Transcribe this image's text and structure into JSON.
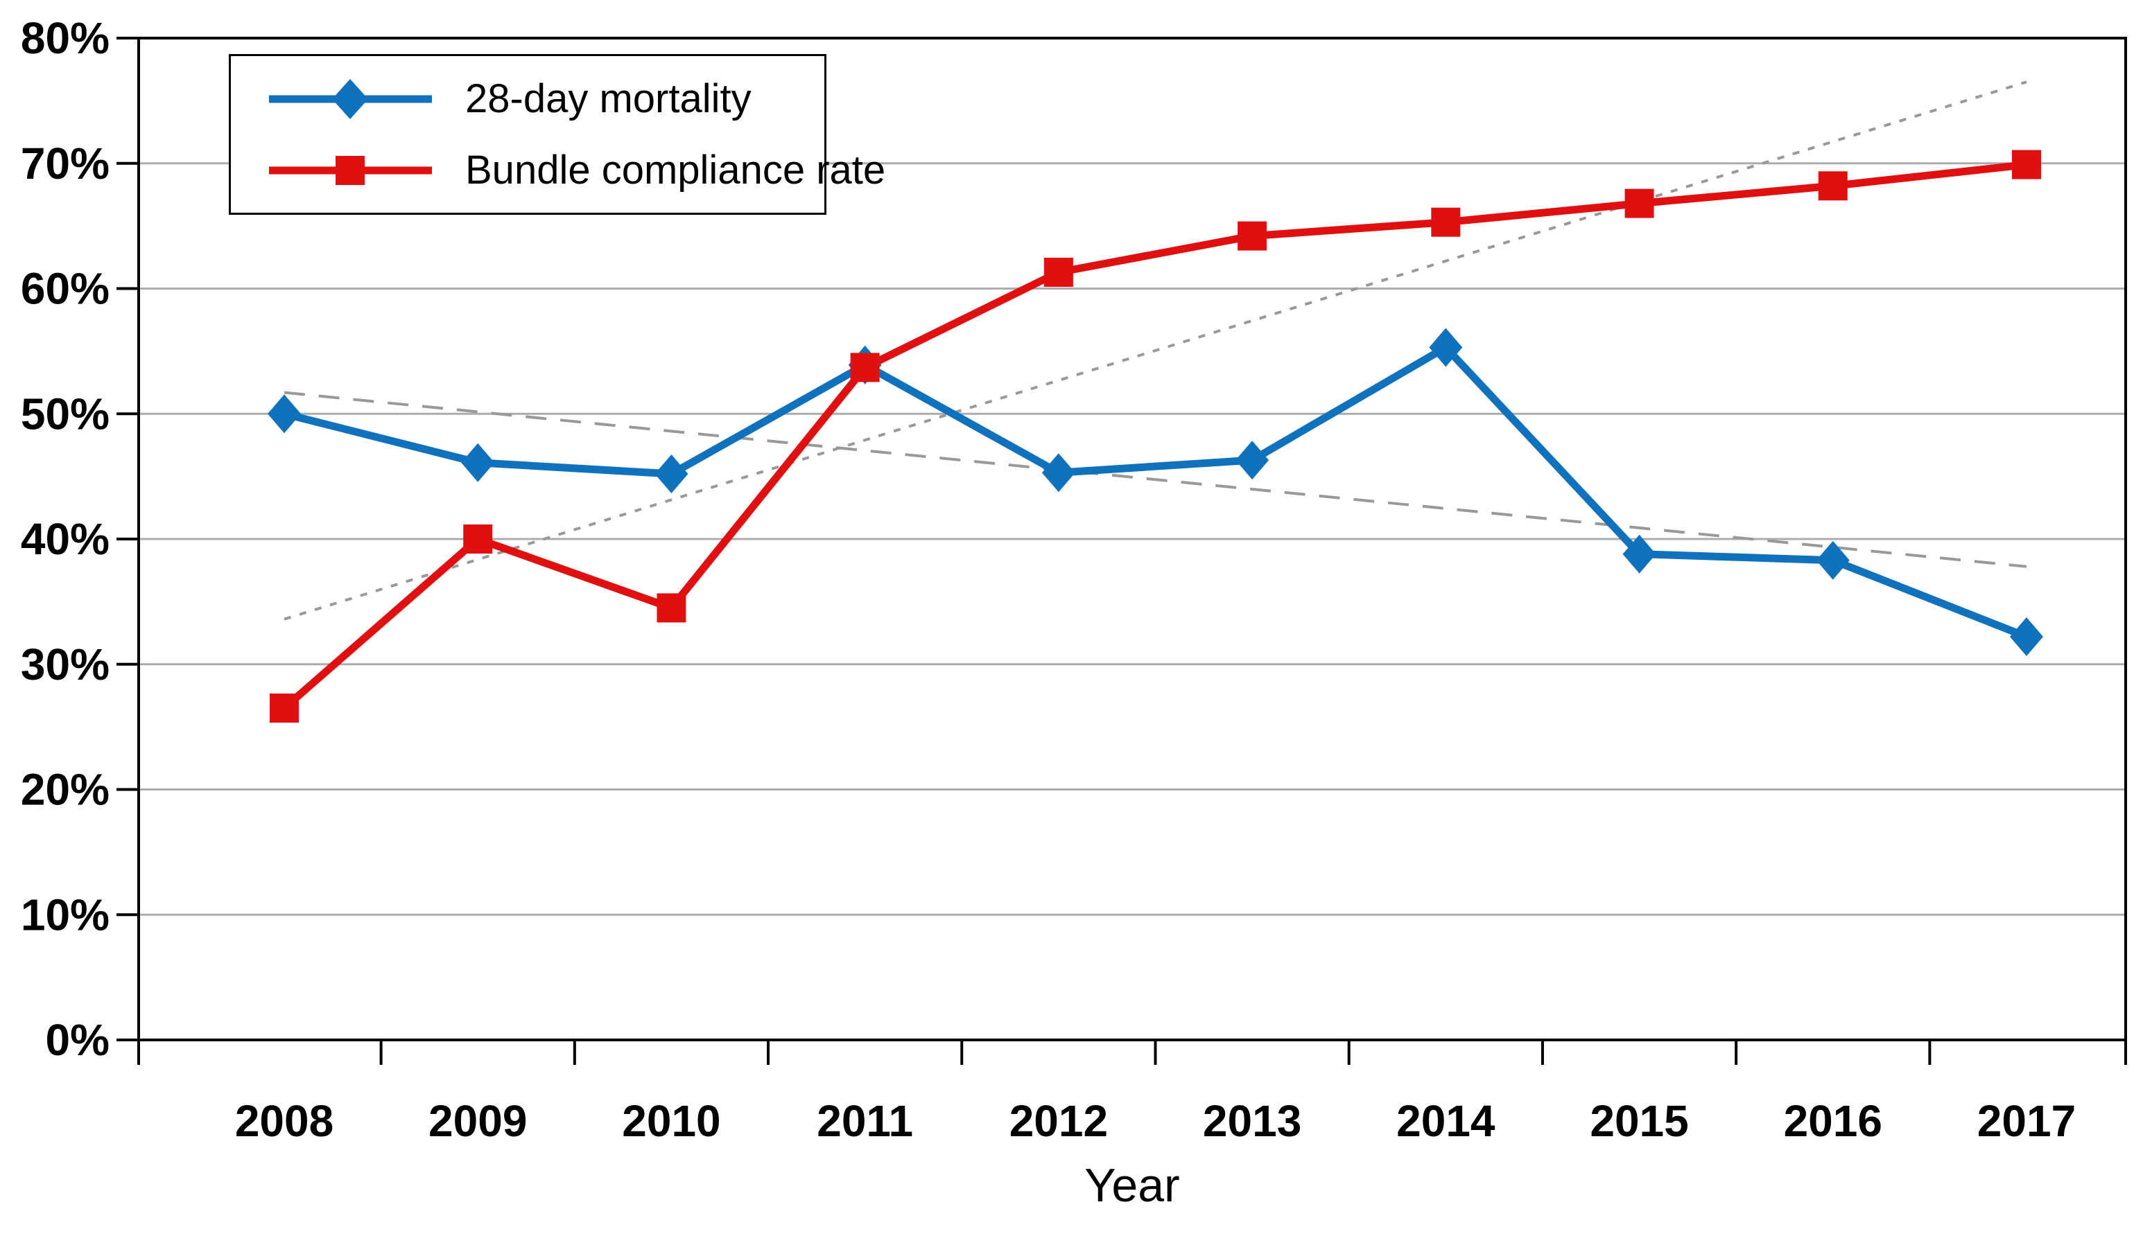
{
  "chart_data": {
    "type": "line",
    "title": "",
    "xlabel": "Year",
    "ylabel": "",
    "categories": [
      "2008",
      "2009",
      "2010",
      "2011",
      "2012",
      "2013",
      "2014",
      "2015",
      "2016",
      "2017"
    ],
    "series": [
      {
        "name": "28-day mortality",
        "color": "#1072BC",
        "marker": "diamond",
        "values": [
          50.0,
          46.1,
          45.2,
          53.9,
          45.3,
          46.3,
          55.3,
          38.8,
          38.3,
          32.2
        ]
      },
      {
        "name": "Bundle compliance rate",
        "color": "#E01010",
        "marker": "square",
        "values": [
          26.5,
          40.0,
          34.5,
          53.7,
          61.3,
          64.2,
          65.3,
          66.8,
          68.2,
          69.9
        ]
      }
    ],
    "trendlines": [
      {
        "for_series": "28-day mortality",
        "style": "long-dash",
        "color": "#999999",
        "start_value": 51.7,
        "end_value": 37.8
      },
      {
        "for_series": "Bundle compliance rate",
        "style": "short-dash",
        "color": "#999999",
        "start_value": 33.6,
        "end_value": 76.5
      }
    ],
    "ylim": [
      0,
      80
    ],
    "ytick_step": 10,
    "ytick_labels": [
      "0%",
      "10%",
      "20%",
      "30%",
      "40%",
      "50%",
      "60%",
      "70%",
      "80%"
    ],
    "grid": true,
    "legend_position": "top-left",
    "axis_color": "#000000",
    "grid_color": "#ACACAC"
  },
  "legend": {
    "items": [
      {
        "label": "28-day mortality"
      },
      {
        "label": "Bundle compliance rate"
      }
    ]
  },
  "axis": {
    "x_title": "Year"
  }
}
